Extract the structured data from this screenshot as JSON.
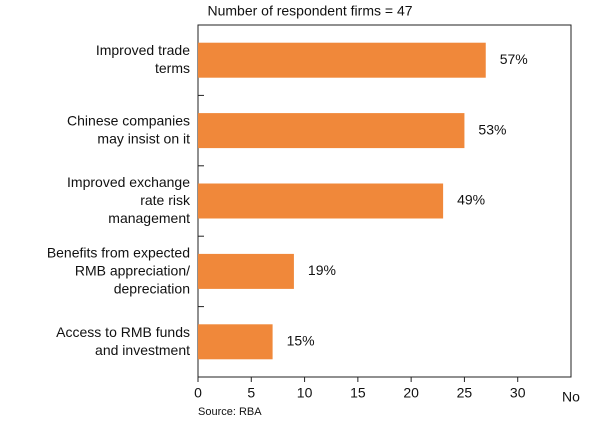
{
  "chart_data": {
    "type": "bar",
    "orientation": "horizontal",
    "subtitle": "Number of respondent firms = 47",
    "categories": [
      [
        "Improved trade",
        "terms"
      ],
      [
        "Chinese companies",
        "may insist on it"
      ],
      [
        "Improved exchange",
        "rate risk",
        "management"
      ],
      [
        "Benefits from expected",
        "RMB appreciation/",
        "depreciation"
      ],
      [
        "Access to RMB funds",
        "and investment"
      ]
    ],
    "values": [
      27,
      25,
      23,
      9,
      7
    ],
    "value_labels": [
      "57%",
      "53%",
      "49%",
      "19%",
      "15%"
    ],
    "color": "#f0883a",
    "x_label": "No",
    "xlim": [
      0,
      35
    ],
    "xticks": [
      0,
      5,
      10,
      15,
      20,
      25,
      30
    ],
    "source": "Source: RBA"
  }
}
